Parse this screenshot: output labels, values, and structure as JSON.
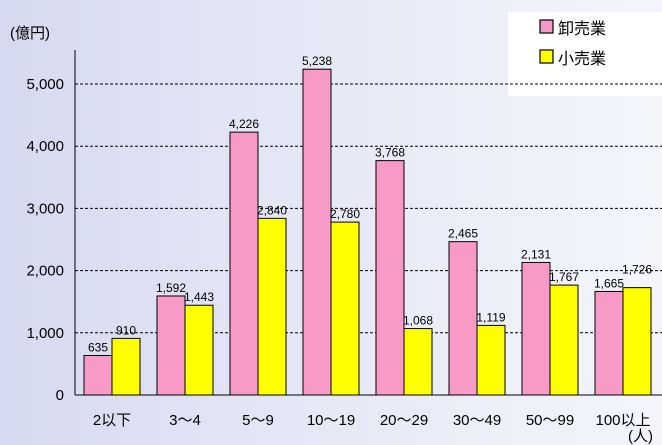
{
  "chart_data": {
    "type": "bar",
    "unit_label": "(億円)",
    "x_unit_label": "(人)",
    "categories": [
      "2以下",
      "3～4",
      "5～9",
      "10～19",
      "20～29",
      "30～49",
      "50～99",
      "100以上"
    ],
    "series": [
      {
        "name": "卸売業",
        "color": "#f79ac8",
        "values": [
          635,
          1592,
          4226,
          5238,
          3768,
          2465,
          2131,
          1665
        ],
        "labels": [
          "635",
          "1,592",
          "4,226",
          "5,238",
          "3,768",
          "2,465",
          "2,131",
          "1,665"
        ]
      },
      {
        "name": "小売業",
        "color": "#ffff00",
        "values": [
          910,
          1443,
          2840,
          2780,
          1068,
          1119,
          1767,
          1726
        ],
        "labels": [
          "910",
          "1,443",
          "2,840",
          "2,780",
          "1,068",
          "1,119",
          "1,767",
          "1,726"
        ]
      }
    ],
    "y_ticks": [
      0,
      1000,
      2000,
      3000,
      4000,
      5000
    ],
    "y_tick_labels": [
      "0",
      "1,000",
      "2,000",
      "3,000",
      "4,000",
      "5,000"
    ],
    "ylim": [
      0,
      5300
    ],
    "grid": true,
    "legend_position": "top-right",
    "background": "#dfe3f3"
  }
}
